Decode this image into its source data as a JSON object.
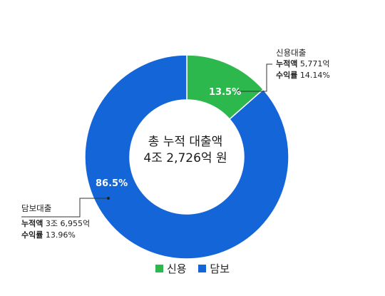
{
  "chart_data": {
    "type": "pie",
    "style": "donut",
    "center_label": [
      "총 누적 대출액",
      "4조 2,726억 원"
    ],
    "slices": [
      {
        "name": "신용",
        "value": 13.5,
        "value_label": "13.5%",
        "color": "#2db84d",
        "annotation": {
          "title": "신용대출",
          "rows": [
            {
              "key": "누적액",
              "value": "5,771억"
            },
            {
              "key": "수익률",
              "value": "14.14%"
            }
          ]
        }
      },
      {
        "name": "담보",
        "value": 86.5,
        "value_label": "86.5%",
        "color": "#1465d8",
        "annotation": {
          "title": "담보대출",
          "rows": [
            {
              "key": "누적액",
              "value": "3조 6,955억"
            },
            {
              "key": "수익률",
              "value": "13.96%"
            }
          ]
        }
      }
    ],
    "legend": {
      "position": "bottom",
      "items": [
        {
          "label": "신용",
          "color": "#2db84d"
        },
        {
          "label": "담보",
          "color": "#1465d8"
        }
      ]
    }
  }
}
